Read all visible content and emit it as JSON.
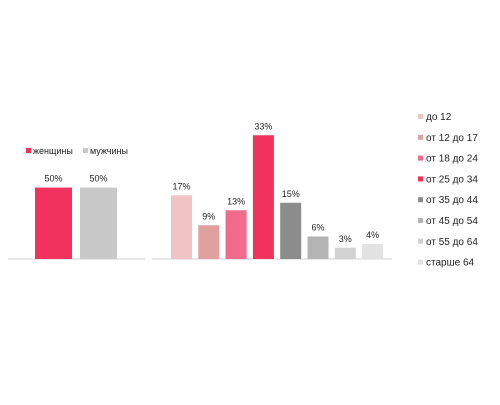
{
  "chart_data": [
    {
      "type": "bar",
      "categories": [
        "женщины",
        "мужчины"
      ],
      "values": [
        50,
        50
      ],
      "value_labels": [
        "50%",
        "50%"
      ],
      "colors": [
        "#f0325c",
        "#c8c8c8"
      ],
      "ylim": [
        0,
        70
      ],
      "legend": {
        "placement": "top",
        "entries": [
          {
            "label": "женщины",
            "color": "#f0325c"
          },
          {
            "label": "мужчины",
            "color": "#c8c8c8"
          }
        ]
      },
      "grid": false
    },
    {
      "type": "bar",
      "categories": [
        "до 12",
        "от 12 до 17",
        "от 18 до 24",
        "от 25 до 34",
        "от 35 до 44",
        "от 45 до 54",
        "от 55 до 64",
        "старше 64"
      ],
      "values": [
        17,
        9,
        13,
        33,
        15,
        6,
        3,
        4
      ],
      "value_labels": [
        "17%",
        "9%",
        "13%",
        "33%",
        "15%",
        "6%",
        "3%",
        "4%"
      ],
      "colors": [
        "#f0c4c4",
        "#e0a0a0",
        "#f06c8a",
        "#f0325c",
        "#8c8c8c",
        "#b4b4b4",
        "#d2d2d2",
        "#e2e2e2"
      ],
      "ylim": [
        0,
        40
      ],
      "legend": {
        "placement": "right",
        "entries": [
          {
            "label": "до 12",
            "color": "#f0c4c4"
          },
          {
            "label": "от 12 до 17",
            "color": "#e0a0a0"
          },
          {
            "label": "от 18 до 24",
            "color": "#f06c8a"
          },
          {
            "label": "от 25 до 34",
            "color": "#f0325c"
          },
          {
            "label": "от 35 до 44",
            "color": "#8c8c8c"
          },
          {
            "label": "от 45 до 54",
            "color": "#b4b4b4"
          },
          {
            "label": "от 55 до 64",
            "color": "#d2d2d2"
          },
          {
            "label": "старше 64",
            "color": "#e2e2e2"
          }
        ]
      },
      "grid": false
    }
  ]
}
